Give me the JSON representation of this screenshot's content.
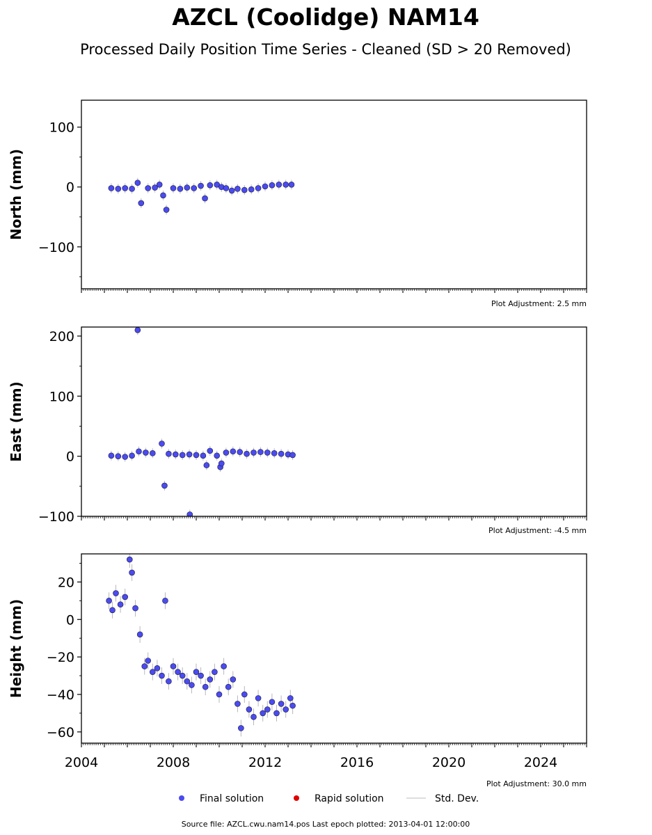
{
  "figure": {
    "title": "AZCL (Coolidge) NAM14",
    "subtitle": "Processed Daily Position Time Series - Cleaned (SD > 20 Removed)",
    "source_note": "Source file: AZCL.cwu.nam14.pos  Last epoch plotted: 2013-04-01 12:00:00"
  },
  "legend": {
    "final": "Final solution",
    "rapid": "Rapid solution",
    "stddev": "Std. Dev."
  },
  "colors": {
    "final_fill": "#4b4bf0",
    "final_edge": "#1a1a40",
    "rapid_fill": "#e00000",
    "errorbar": "#9a9a9a",
    "legend_line": "#d3d3d3"
  },
  "chart_data": [
    {
      "type": "scatter",
      "ylabel": "North (mm)",
      "xlim": [
        2004,
        2026
      ],
      "ylim": [
        -170,
        145
      ],
      "yticks": [
        -100,
        0,
        100
      ],
      "ytick_labels": [
        "−100",
        "0",
        "100"
      ],
      "adjustment_note": "Plot Adjustment: 2.5 mm",
      "series": [
        {
          "name": "Final solution",
          "x": [
            2005.3,
            2005.6,
            2005.9,
            2006.2,
            2006.45,
            2006.6,
            2006.9,
            2007.2,
            2007.4,
            2007.56,
            2007.7,
            2008.0,
            2008.3,
            2008.6,
            2008.9,
            2009.2,
            2009.38,
            2009.6,
            2009.9,
            2010.1,
            2010.3,
            2010.55,
            2010.8,
            2011.1,
            2011.4,
            2011.7,
            2012.0,
            2012.3,
            2012.6,
            2012.9,
            2013.15
          ],
          "y": [
            -2,
            -3,
            -2,
            -3,
            7,
            -27,
            -2,
            -1,
            4,
            -14,
            -38,
            -2,
            -3,
            -1,
            -2,
            2,
            -19,
            3,
            4,
            0,
            -2,
            -6,
            -3,
            -5,
            -4,
            -2,
            1,
            3,
            4,
            4,
            4
          ]
        }
      ]
    },
    {
      "type": "scatter",
      "ylabel": "East (mm)",
      "xlim": [
        2004,
        2026
      ],
      "ylim": [
        -100,
        215
      ],
      "yticks": [
        -100,
        0,
        100,
        200
      ],
      "ytick_labels": [
        "−100",
        "0",
        "100",
        "200"
      ],
      "adjustment_note": "Plot Adjustment: -4.5 mm",
      "series": [
        {
          "name": "Final solution",
          "x": [
            2005.3,
            2005.6,
            2005.9,
            2006.2,
            2006.45,
            2006.5,
            2006.8,
            2007.1,
            2007.5,
            2007.62,
            2007.8,
            2008.1,
            2008.4,
            2008.7,
            2008.72,
            2009.0,
            2009.3,
            2009.45,
            2009.6,
            2009.9,
            2010.05,
            2010.1,
            2010.3,
            2010.6,
            2010.9,
            2011.2,
            2011.5,
            2011.8,
            2012.1,
            2012.4,
            2012.7,
            2013.0,
            2013.2
          ],
          "y": [
            1,
            0,
            -1,
            1,
            210,
            8,
            6,
            5,
            21,
            -49,
            4,
            3,
            2,
            3,
            -97,
            2,
            1,
            -15,
            9,
            1,
            -18,
            -12,
            6,
            8,
            7,
            4,
            6,
            7,
            6,
            5,
            4,
            3,
            2
          ]
        }
      ]
    },
    {
      "type": "scatter",
      "ylabel": "Height (mm)",
      "xlim": [
        2004,
        2026
      ],
      "ylim": [
        -66,
        35
      ],
      "yticks": [
        -60,
        -40,
        -20,
        0,
        20
      ],
      "ytick_labels": [
        "−60",
        "−40",
        "−20",
        "0",
        "20"
      ],
      "xticks": [
        2004,
        2008,
        2012,
        2016,
        2020,
        2024
      ],
      "xtick_labels": [
        "2004",
        "2008",
        "2012",
        "2016",
        "2020",
        "2024"
      ],
      "adjustment_note": "Plot Adjustment: 30.0 mm",
      "series": [
        {
          "name": "Final solution",
          "x": [
            2005.2,
            2005.35,
            2005.5,
            2005.7,
            2005.9,
            2006.1,
            2006.2,
            2006.35,
            2006.55,
            2006.75,
            2006.9,
            2007.1,
            2007.3,
            2007.5,
            2007.65,
            2007.8,
            2008.0,
            2008.2,
            2008.4,
            2008.6,
            2008.8,
            2009.0,
            2009.2,
            2009.4,
            2009.6,
            2009.8,
            2010.0,
            2010.2,
            2010.4,
            2010.6,
            2010.8,
            2010.95,
            2011.1,
            2011.3,
            2011.5,
            2011.7,
            2011.9,
            2012.1,
            2012.3,
            2012.5,
            2012.7,
            2012.9,
            2013.1,
            2013.2
          ],
          "y": [
            10,
            5,
            14,
            8,
            12,
            32,
            25,
            6,
            -8,
            -25,
            -22,
            -28,
            -26,
            -30,
            10,
            -33,
            -25,
            -28,
            -30,
            -33,
            -35,
            -28,
            -30,
            -36,
            -32,
            -28,
            -40,
            -25,
            -36,
            -32,
            -45,
            -58,
            -40,
            -48,
            -52,
            -42,
            -50,
            -48,
            -44,
            -50,
            -45,
            -48,
            -42,
            -46
          ]
        }
      ]
    }
  ]
}
